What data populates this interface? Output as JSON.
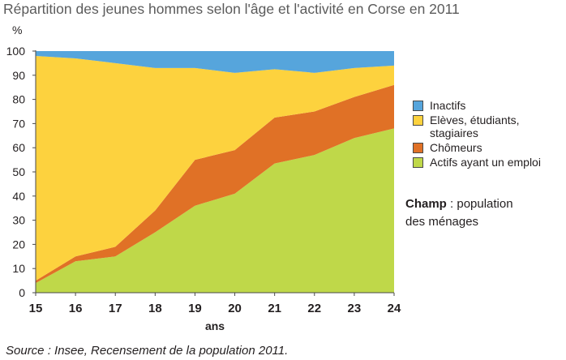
{
  "title": "Répartition des jeunes hommes selon l'âge et l'activité en Corse en 2011",
  "note": {
    "bold": "Champ",
    "rest_line1": " : population",
    "line2": "des ménages"
  },
  "source": "Source : Insee, Recensement de la population 2011.",
  "chart_data": {
    "type": "area",
    "stacked": true,
    "title": "Répartition des jeunes hommes selon l'âge et l'activité en Corse en 2011",
    "xlabel": "ans",
    "ylabel": "%",
    "x": [
      15,
      16,
      17,
      18,
      19,
      20,
      21,
      22,
      23,
      24
    ],
    "ylim": [
      0,
      100
    ],
    "yticks": [
      0,
      10,
      20,
      30,
      40,
      50,
      60,
      70,
      80,
      90,
      100
    ],
    "grid": false,
    "legend_position": "right",
    "series": [
      {
        "name": "Actifs ayant un emploi",
        "color": "#bfd849",
        "values": [
          4,
          13,
          15,
          25,
          36,
          41,
          53.5,
          57,
          64,
          68
        ]
      },
      {
        "name": "Chômeurs",
        "color": "#e07126",
        "values": [
          1,
          2,
          4,
          9,
          19,
          18,
          19,
          18,
          17,
          18
        ]
      },
      {
        "name": "Elèves, étudiants, stagiaires",
        "color": "#fdd23e",
        "values": [
          93,
          82,
          76,
          59,
          38,
          32,
          20,
          16,
          12,
          8
        ]
      },
      {
        "name": "Inactifs",
        "color": "#56a5dc",
        "values": [
          2,
          3,
          5,
          7,
          7,
          9,
          7.5,
          9,
          7,
          6
        ]
      }
    ],
    "legend_order": [
      "Inactifs",
      "Elèves, étudiants, stagiaires",
      "Chômeurs",
      "Actifs ayant un emploi"
    ]
  }
}
